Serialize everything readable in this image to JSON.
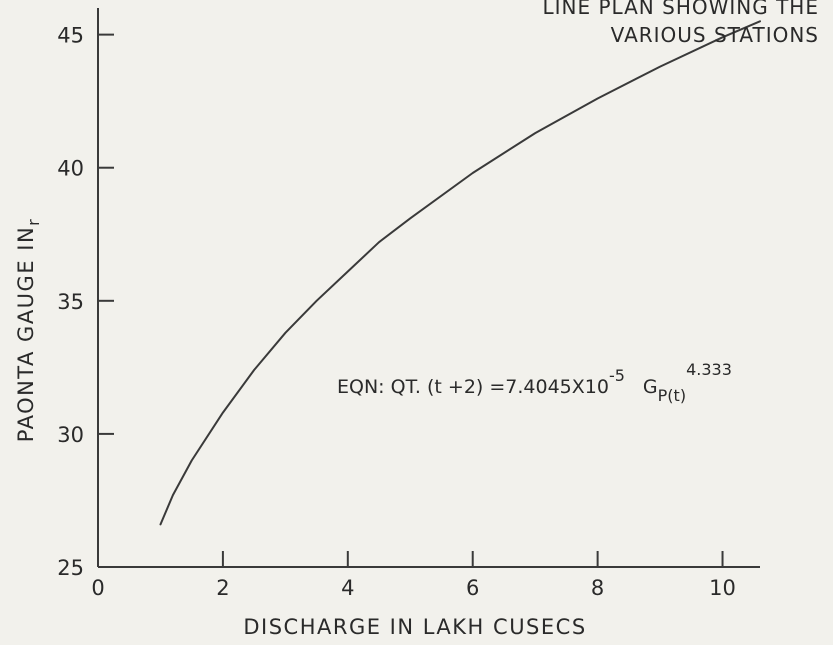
{
  "chart_data": {
    "type": "line",
    "title": "",
    "caption_lines": [
      "LINE PLAN SHOWING THE",
      "VARIOUS STATIONS"
    ],
    "xlabel": "DISCHARGE IN  LAKH CUSECS",
    "ylabel": "PAONTA GAUGE IN",
    "ylabel_sub": "r",
    "xlim": [
      0,
      10.6
    ],
    "ylim": [
      25,
      46
    ],
    "x_ticks": [
      0,
      2,
      4,
      6,
      8,
      10
    ],
    "x_tick_labels": [
      "0",
      "2",
      "4",
      "6",
      "8",
      "10"
    ],
    "y_ticks": [
      25,
      30,
      35,
      40,
      45
    ],
    "y_tick_labels": [
      "25",
      "30",
      "35",
      "40",
      "45"
    ],
    "grid": false,
    "line_color": "#3a3a3a",
    "annotation": {
      "main": "EQN: QT. (t +2) =7.4045X10",
      "exp1": "-5",
      "g": "G",
      "sub": "P(t)",
      "exp2": "4.333"
    },
    "series": [
      {
        "x": [
          1.0,
          1.2,
          1.5,
          2.0,
          2.5,
          3.0,
          3.5,
          4.0,
          4.5,
          5.0,
          6.0,
          7.0,
          8.0,
          9.0,
          10.0,
          10.6
        ],
        "y": [
          26.6,
          27.7,
          29.0,
          30.8,
          32.4,
          33.8,
          35.0,
          36.1,
          37.2,
          38.1,
          39.8,
          41.3,
          42.6,
          43.8,
          44.9,
          45.5
        ]
      }
    ]
  }
}
